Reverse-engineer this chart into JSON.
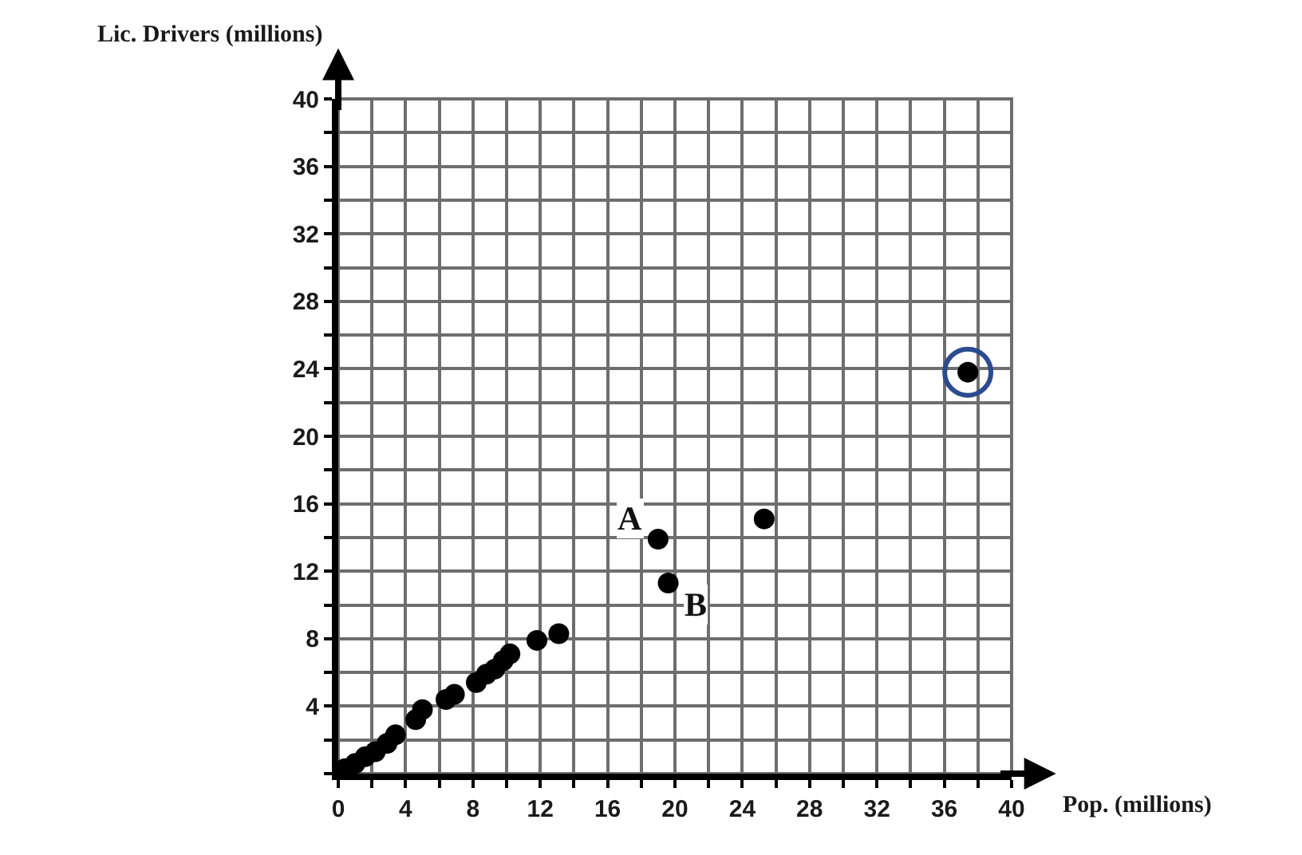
{
  "chart_data": {
    "type": "scatter",
    "xlabel": "Pop. (millions)",
    "ylabel": "Lic. Drivers (millions)",
    "xlim": [
      0,
      40
    ],
    "ylim": [
      0,
      40
    ],
    "xticks": [
      0,
      {
        "value": 2,
        "label": null
      },
      4,
      {
        "value": 6,
        "label": null
      },
      8,
      {
        "value": 10,
        "label": null
      },
      12,
      {
        "value": 14,
        "label": null
      },
      16,
      {
        "value": 18,
        "label": null
      },
      20,
      {
        "value": 22,
        "label": null
      },
      24,
      {
        "value": 26,
        "label": null
      },
      28,
      {
        "value": 30,
        "label": null
      },
      32,
      {
        "value": 34,
        "label": null
      },
      36,
      {
        "value": 38,
        "label": null
      },
      40
    ],
    "yticks": [
      {
        "value": 0,
        "label": null
      },
      {
        "value": 2,
        "label": null
      },
      4,
      {
        "value": 6,
        "label": null
      },
      8,
      {
        "value": 10,
        "label": null
      },
      12,
      {
        "value": 14,
        "label": null
      },
      16,
      {
        "value": 18,
        "label": null
      },
      20,
      {
        "value": 22,
        "label": null
      },
      24,
      {
        "value": 26,
        "label": null
      },
      28,
      {
        "value": 30,
        "label": null
      },
      32,
      {
        "value": 34,
        "label": null
      },
      36,
      {
        "value": 38,
        "label": null
      },
      40
    ],
    "grid": true,
    "marker": "circle",
    "series": [
      {
        "color": "#000000",
        "x": [
          0.4,
          1.0,
          1.6,
          2.2,
          2.9,
          3.4,
          4.6,
          5.0,
          6.4,
          6.9,
          8.2,
          8.8,
          9.3,
          9.8,
          10.2,
          11.8,
          13.1,
          19.0,
          19.6,
          25.3,
          37.4
        ],
        "values": [
          0.3,
          0.6,
          1.0,
          1.3,
          1.8,
          2.3,
          3.2,
          3.8,
          4.4,
          4.7,
          5.4,
          5.9,
          6.2,
          6.7,
          7.1,
          7.9,
          8.3,
          13.9,
          11.3,
          15.1,
          23.8
        ]
      },
      {
        "color": "#2b4b8f",
        "x": [
          37.4
        ],
        "values": [
          23.8
        ]
      }
    ],
    "annotations": [
      {
        "text": "A",
        "x": 19.0,
        "y": 13.9
      },
      {
        "text": "B",
        "x": 19.6,
        "y": 11.3
      }
    ]
  }
}
